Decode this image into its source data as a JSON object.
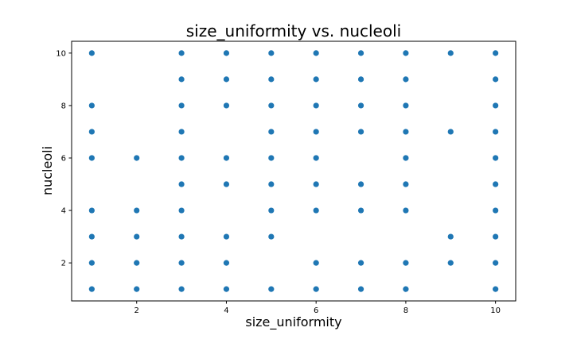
{
  "chart_data": {
    "type": "scatter",
    "title": "size_uniformity vs. nucleoli",
    "xlabel": "size_uniformity",
    "ylabel": "nucleoli",
    "xlim": [
      0.55,
      10.45
    ],
    "ylim": [
      0.55,
      10.45
    ],
    "xticks": [
      2,
      4,
      6,
      8,
      10
    ],
    "yticks": [
      2,
      4,
      6,
      8,
      10
    ],
    "grid": false,
    "color": "#1f77b4",
    "points": [
      [
        1,
        10
      ],
      [
        1,
        8
      ],
      [
        1,
        7
      ],
      [
        1,
        6
      ],
      [
        1,
        4
      ],
      [
        1,
        3
      ],
      [
        1,
        2
      ],
      [
        1,
        1
      ],
      [
        2,
        6
      ],
      [
        2,
        4
      ],
      [
        2,
        3
      ],
      [
        2,
        2
      ],
      [
        2,
        1
      ],
      [
        3,
        10
      ],
      [
        3,
        9
      ],
      [
        3,
        8
      ],
      [
        3,
        7
      ],
      [
        3,
        6
      ],
      [
        3,
        5
      ],
      [
        3,
        4
      ],
      [
        3,
        3
      ],
      [
        3,
        2
      ],
      [
        3,
        1
      ],
      [
        4,
        10
      ],
      [
        4,
        9
      ],
      [
        4,
        8
      ],
      [
        4,
        6
      ],
      [
        4,
        5
      ],
      [
        4,
        3
      ],
      [
        4,
        2
      ],
      [
        4,
        1
      ],
      [
        5,
        10
      ],
      [
        5,
        9
      ],
      [
        5,
        8
      ],
      [
        5,
        7
      ],
      [
        5,
        6
      ],
      [
        5,
        5
      ],
      [
        5,
        4
      ],
      [
        5,
        3
      ],
      [
        5,
        1
      ],
      [
        6,
        10
      ],
      [
        6,
        9
      ],
      [
        6,
        8
      ],
      [
        6,
        7
      ],
      [
        6,
        6
      ],
      [
        6,
        5
      ],
      [
        6,
        4
      ],
      [
        6,
        2
      ],
      [
        6,
        1
      ],
      [
        7,
        10
      ],
      [
        7,
        9
      ],
      [
        7,
        8
      ],
      [
        7,
        7
      ],
      [
        7,
        5
      ],
      [
        7,
        4
      ],
      [
        7,
        2
      ],
      [
        7,
        1
      ],
      [
        8,
        10
      ],
      [
        8,
        9
      ],
      [
        8,
        8
      ],
      [
        8,
        7
      ],
      [
        8,
        6
      ],
      [
        8,
        5
      ],
      [
        8,
        4
      ],
      [
        8,
        2
      ],
      [
        8,
        1
      ],
      [
        9,
        10
      ],
      [
        9,
        7
      ],
      [
        9,
        3
      ],
      [
        9,
        2
      ],
      [
        10,
        10
      ],
      [
        10,
        9
      ],
      [
        10,
        8
      ],
      [
        10,
        7
      ],
      [
        10,
        6
      ],
      [
        10,
        5
      ],
      [
        10,
        4
      ],
      [
        10,
        3
      ],
      [
        10,
        2
      ],
      [
        10,
        1
      ]
    ]
  }
}
